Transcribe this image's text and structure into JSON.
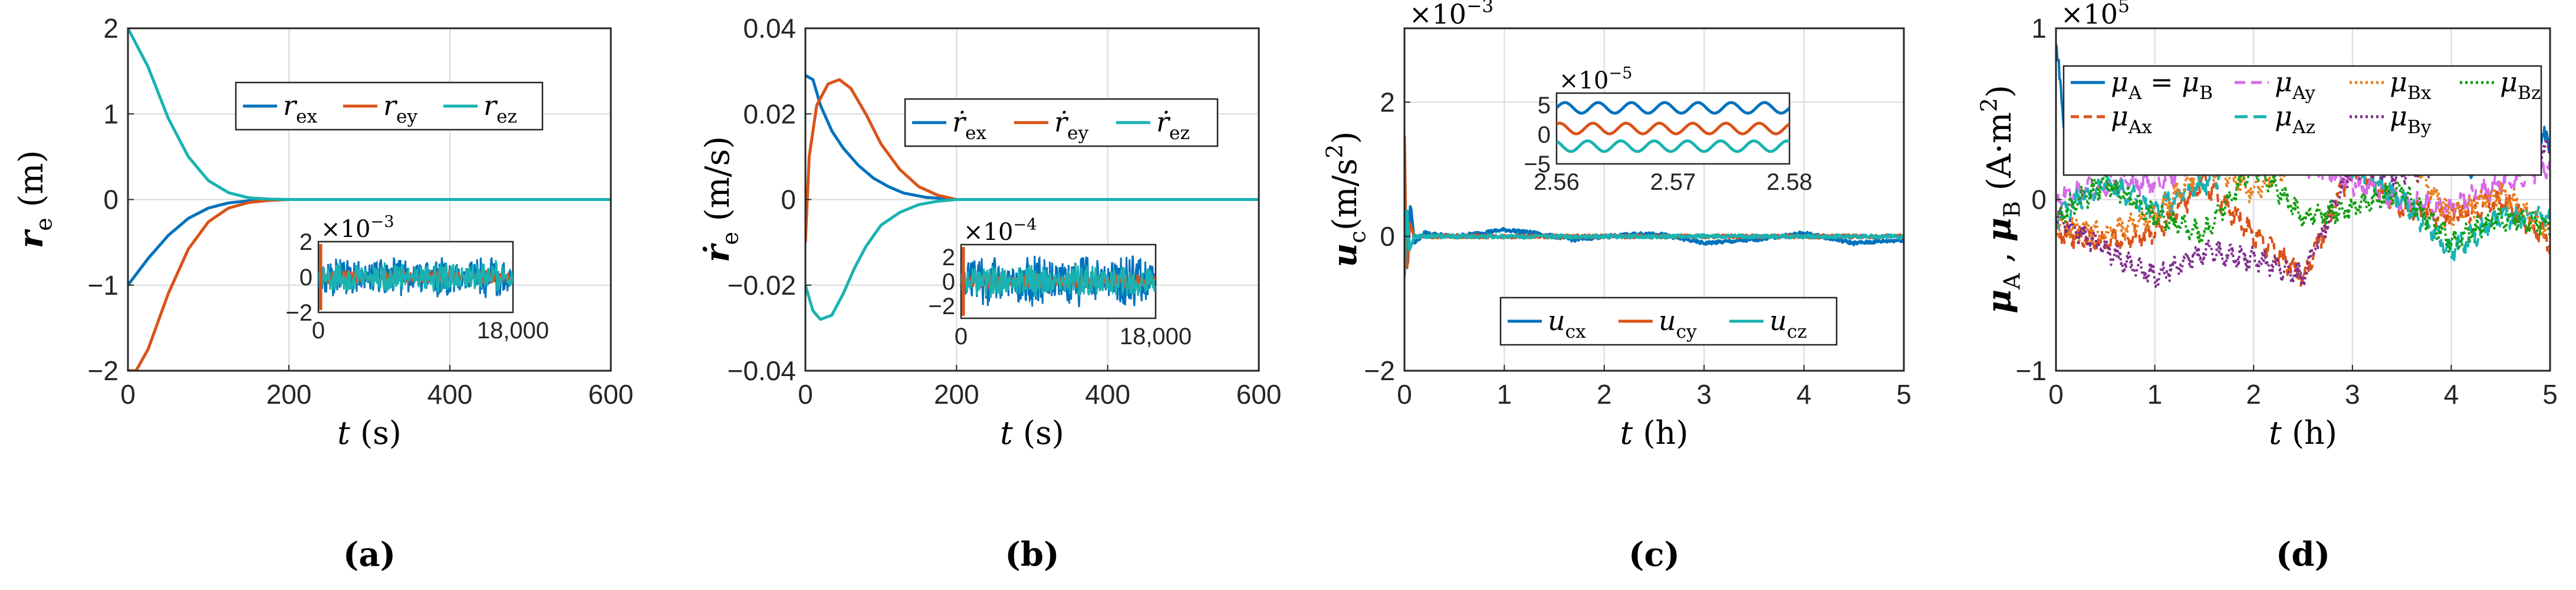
{
  "colors": {
    "blue": "#0072BD",
    "orange": "#D95319",
    "teal": "#1AB2B2",
    "lilac": "#D66BE8",
    "orange2": "#E97E1B",
    "green": "#119E11",
    "purple": "#7E2F8E",
    "grid": "#DADADA"
  },
  "chart_data": [
    {
      "panel_label": "(a)",
      "type": "line",
      "xlabel": "t (s)",
      "ylabel": "r_e (m)",
      "xlim": [
        0,
        600
      ],
      "ylim": [
        -2,
        2
      ],
      "xticks": [
        "0",
        "200",
        "400",
        "600"
      ],
      "yticks": [
        "−2",
        "−1",
        "0",
        "1",
        "2"
      ],
      "legend": [
        "r_ex",
        "r_ey",
        "r_ez"
      ],
      "legend_position": "top-center",
      "series": [
        {
          "name": "r_ex",
          "color": "#0072BD",
          "x": [
            0,
            25,
            50,
            75,
            100,
            125,
            150,
            175,
            200,
            250,
            300,
            400,
            600
          ],
          "y": [
            -1,
            -0.69,
            -0.42,
            -0.22,
            -0.1,
            -0.04,
            -0.015,
            -0.005,
            0,
            0,
            0,
            0,
            0
          ]
        },
        {
          "name": "r_ey",
          "color": "#D95319",
          "x": [
            0,
            10,
            25,
            50,
            75,
            100,
            125,
            150,
            175,
            200,
            250,
            300,
            400,
            600
          ],
          "y": [
            -2,
            -2,
            -1.75,
            -1.1,
            -0.58,
            -0.26,
            -0.1,
            -0.035,
            -0.01,
            0,
            0,
            0,
            0,
            0
          ]
        },
        {
          "name": "r_ez",
          "color": "#1AB2B2",
          "x": [
            0,
            25,
            50,
            75,
            100,
            125,
            150,
            175,
            200,
            250,
            300,
            400,
            600
          ],
          "y": [
            2,
            1.55,
            0.95,
            0.5,
            0.22,
            0.08,
            0.02,
            0.005,
            0,
            0,
            0,
            0,
            0
          ]
        }
      ],
      "inset": {
        "exponent": "×10⁻³",
        "xlim": [
          0,
          18000
        ],
        "ylim": [
          -2,
          2
        ],
        "xticks": [
          "0",
          "18,000"
        ],
        "yticks": [
          "−2",
          "0",
          "2"
        ],
        "note": "oscillation amplitude ≈ 1.5×10⁻³ m"
      }
    },
    {
      "panel_label": "(b)",
      "type": "line",
      "xlabel": "t (s)",
      "ylabel": "ṙ_e (m/s)",
      "xlim": [
        0,
        600
      ],
      "ylim": [
        -0.04,
        0.04
      ],
      "xticks": [
        "0",
        "200",
        "400",
        "600"
      ],
      "yticks": [
        "−0.04",
        "−0.02",
        "0",
        "0.02",
        "0.04"
      ],
      "legend": [
        "ṙ_ex",
        "ṙ_ey",
        "ṙ_ez"
      ],
      "legend_position": "top-right",
      "series": [
        {
          "name": "ṙ_ex",
          "color": "#0072BD",
          "x": [
            0,
            10,
            20,
            35,
            50,
            70,
            90,
            110,
            130,
            160,
            200,
            250,
            600
          ],
          "y": [
            0.029,
            0.028,
            0.022,
            0.016,
            0.012,
            0.008,
            0.005,
            0.003,
            0.0015,
            0.0005,
            0,
            0,
            0
          ]
        },
        {
          "name": "ṙ_ey",
          "color": "#D95319",
          "x": [
            0,
            5,
            15,
            30,
            45,
            60,
            80,
            100,
            125,
            150,
            175,
            200,
            250,
            600
          ],
          "y": [
            -0.01,
            0.01,
            0.022,
            0.027,
            0.028,
            0.026,
            0.02,
            0.013,
            0.007,
            0.003,
            0.001,
            0,
            0,
            0
          ]
        },
        {
          "name": "ṙ_ez",
          "color": "#1AB2B2",
          "x": [
            0,
            10,
            20,
            35,
            50,
            65,
            80,
            100,
            125,
            150,
            175,
            200,
            250,
            600
          ],
          "y": [
            -0.02,
            -0.026,
            -0.028,
            -0.027,
            -0.022,
            -0.016,
            -0.011,
            -0.006,
            -0.003,
            -0.0012,
            -0.0004,
            0,
            0,
            0
          ]
        }
      ],
      "inset": {
        "exponent": "×10⁻⁴",
        "xlim": [
          0,
          18000
        ],
        "ylim": [
          -3,
          3
        ],
        "xticks": [
          "0",
          "18,000"
        ],
        "yticks": [
          "−2",
          "0",
          "2"
        ],
        "note": "oscillation amplitude ≈ 2×10⁻⁴ m/s"
      }
    },
    {
      "panel_label": "(c)",
      "type": "line",
      "xlabel": "t (h)",
      "ylabel": "u_c (m/s²)",
      "exponent": "×10⁻³",
      "xlim": [
        0,
        5
      ],
      "ylim": [
        -2,
        3.1
      ],
      "xticks": [
        "0",
        "1",
        "2",
        "3",
        "4",
        "5"
      ],
      "yticks": [
        "−2",
        "0",
        "2"
      ],
      "legend": [
        "u_cx",
        "u_cy",
        "u_cz"
      ],
      "legend_position": "bottom-center",
      "series": [
        {
          "name": "u_cx",
          "color": "#0072BD",
          "x": [
            0,
            0.03,
            0.06,
            0.1,
            0.2,
            0.5,
            1,
            1.3,
            1.7,
            2,
            2.5,
            3,
            3.5,
            4,
            4.5,
            5
          ],
          "y": [
            0,
            -0.5,
            0.5,
            -0.1,
            0.05,
            0,
            0.1,
            0.05,
            -0.05,
            0,
            0.05,
            -0.1,
            -0.05,
            0.05,
            -0.1,
            -0.05
          ]
        },
        {
          "name": "u_cy",
          "color": "#D95319",
          "x": [
            0,
            0.02,
            0.05,
            0.1,
            0.5,
            1,
            2,
            3,
            4,
            5
          ],
          "y": [
            1.5,
            -0.6,
            0.2,
            0,
            0,
            0,
            0,
            0,
            0,
            0
          ]
        },
        {
          "name": "u_cz",
          "color": "#1AB2B2",
          "x": [
            0,
            0.02,
            0.05,
            0.1,
            0.5,
            1,
            2,
            3,
            4,
            5
          ],
          "y": [
            -0.6,
            0.5,
            -0.2,
            0,
            0,
            0,
            0,
            0,
            0,
            0
          ]
        }
      ],
      "inset": {
        "exponent": "×10⁻⁵",
        "xlim": [
          2.56,
          2.58
        ],
        "ylim": [
          -5,
          7
        ],
        "xticks": [
          "2.56",
          "2.57",
          "2.58"
        ],
        "yticks": [
          "−5",
          "0",
          "5"
        ],
        "note": "u_cx oscillates near 4.5, u_cy near 1, u_cz near −2 (×10⁻⁵)"
      }
    },
    {
      "panel_label": "(d)",
      "type": "line",
      "xlabel": "t (h)",
      "ylabel": "μ_A, μ_B (A·m²)",
      "exponent": "×10⁵",
      "xlim": [
        0,
        5
      ],
      "ylim": [
        -1,
        1
      ],
      "xticks": [
        "0",
        "1",
        "2",
        "3",
        "4",
        "5"
      ],
      "yticks": [
        "−1",
        "0",
        "1"
      ],
      "legend": [
        "μ_A = μ_B",
        "μ_Ax",
        "μ_Ay",
        "μ_Az",
        "μ_Bx",
        "μ_By",
        "μ_Bz"
      ],
      "legend_position": "top",
      "series": [
        {
          "name": "μ_A = μ_B",
          "color": "#0072BD",
          "x": [
            0,
            0.1,
            0.3,
            0.6,
            1,
            1.4,
            1.8,
            2.2,
            2.6,
            3,
            3.4,
            3.8,
            4.2,
            4.6,
            5
          ],
          "y": [
            0.9,
            0.35,
            0.35,
            0.3,
            0.45,
            0.3,
            0.35,
            0.3,
            0.35,
            0.4,
            0.35,
            0.3,
            0.2,
            0.35,
            0.35
          ]
        },
        {
          "name": "μ_Ax",
          "color": "#D95319",
          "x": [
            0,
            0.1,
            0.5,
            1,
            1.5,
            2,
            2.5,
            3,
            3.5,
            4,
            4.5,
            5
          ],
          "y": [
            -0.2,
            -0.2,
            -0.25,
            -0.2,
            0.1,
            -0.2,
            -0.45,
            0.2,
            -0.05,
            -0.1,
            0,
            -0.25
          ]
        },
        {
          "name": "μ_Ay",
          "color": "#D66BE8",
          "x": [
            0,
            0.5,
            1,
            1.5,
            2,
            2.5,
            3,
            3.5,
            4,
            4.5,
            5
          ],
          "y": [
            0,
            0.1,
            0.1,
            0.25,
            0.2,
            0.2,
            0.1,
            0,
            -0.05,
            0.1,
            0.2
          ]
        },
        {
          "name": "μ_Az",
          "color": "#1AB2B2",
          "x": [
            0,
            0.5,
            1,
            1.5,
            2,
            2.5,
            3,
            3.5,
            4,
            4.5,
            5
          ],
          "y": [
            -0.1,
            0.1,
            -0.05,
            0.1,
            0.25,
            0.3,
            0.2,
            0,
            -0.3,
            -0.1,
            -0.1
          ]
        },
        {
          "name": "μ_Bx",
          "color": "#E97E1B",
          "x": [
            0,
            0.5,
            1,
            1.5,
            2,
            2.5,
            3,
            3.5,
            4,
            4.5,
            5
          ],
          "y": [
            -0.15,
            -0.2,
            -0.1,
            0.2,
            0.05,
            0.25,
            0.35,
            0.3,
            -0.1,
            0.05,
            -0.2
          ]
        },
        {
          "name": "μ_By",
          "color": "#7E2F8E",
          "x": [
            0,
            0.5,
            1,
            1.5,
            2,
            2.5,
            3,
            3.5,
            4,
            4.5,
            5
          ],
          "y": [
            -0.1,
            -0.3,
            -0.45,
            -0.3,
            -0.35,
            -0.45,
            0.2,
            0.15,
            0.25,
            0.25,
            0.3
          ]
        },
        {
          "name": "μ_Bz",
          "color": "#119E11",
          "x": [
            0,
            0.5,
            1,
            1.5,
            2,
            2.5,
            3,
            3.5,
            4,
            4.5,
            5
          ],
          "y": [
            -0.1,
            0.1,
            -0.1,
            -0.2,
            0.2,
            -0.1,
            -0.05,
            0.05,
            -0.25,
            -0.1,
            -0.15
          ]
        }
      ]
    }
  ]
}
